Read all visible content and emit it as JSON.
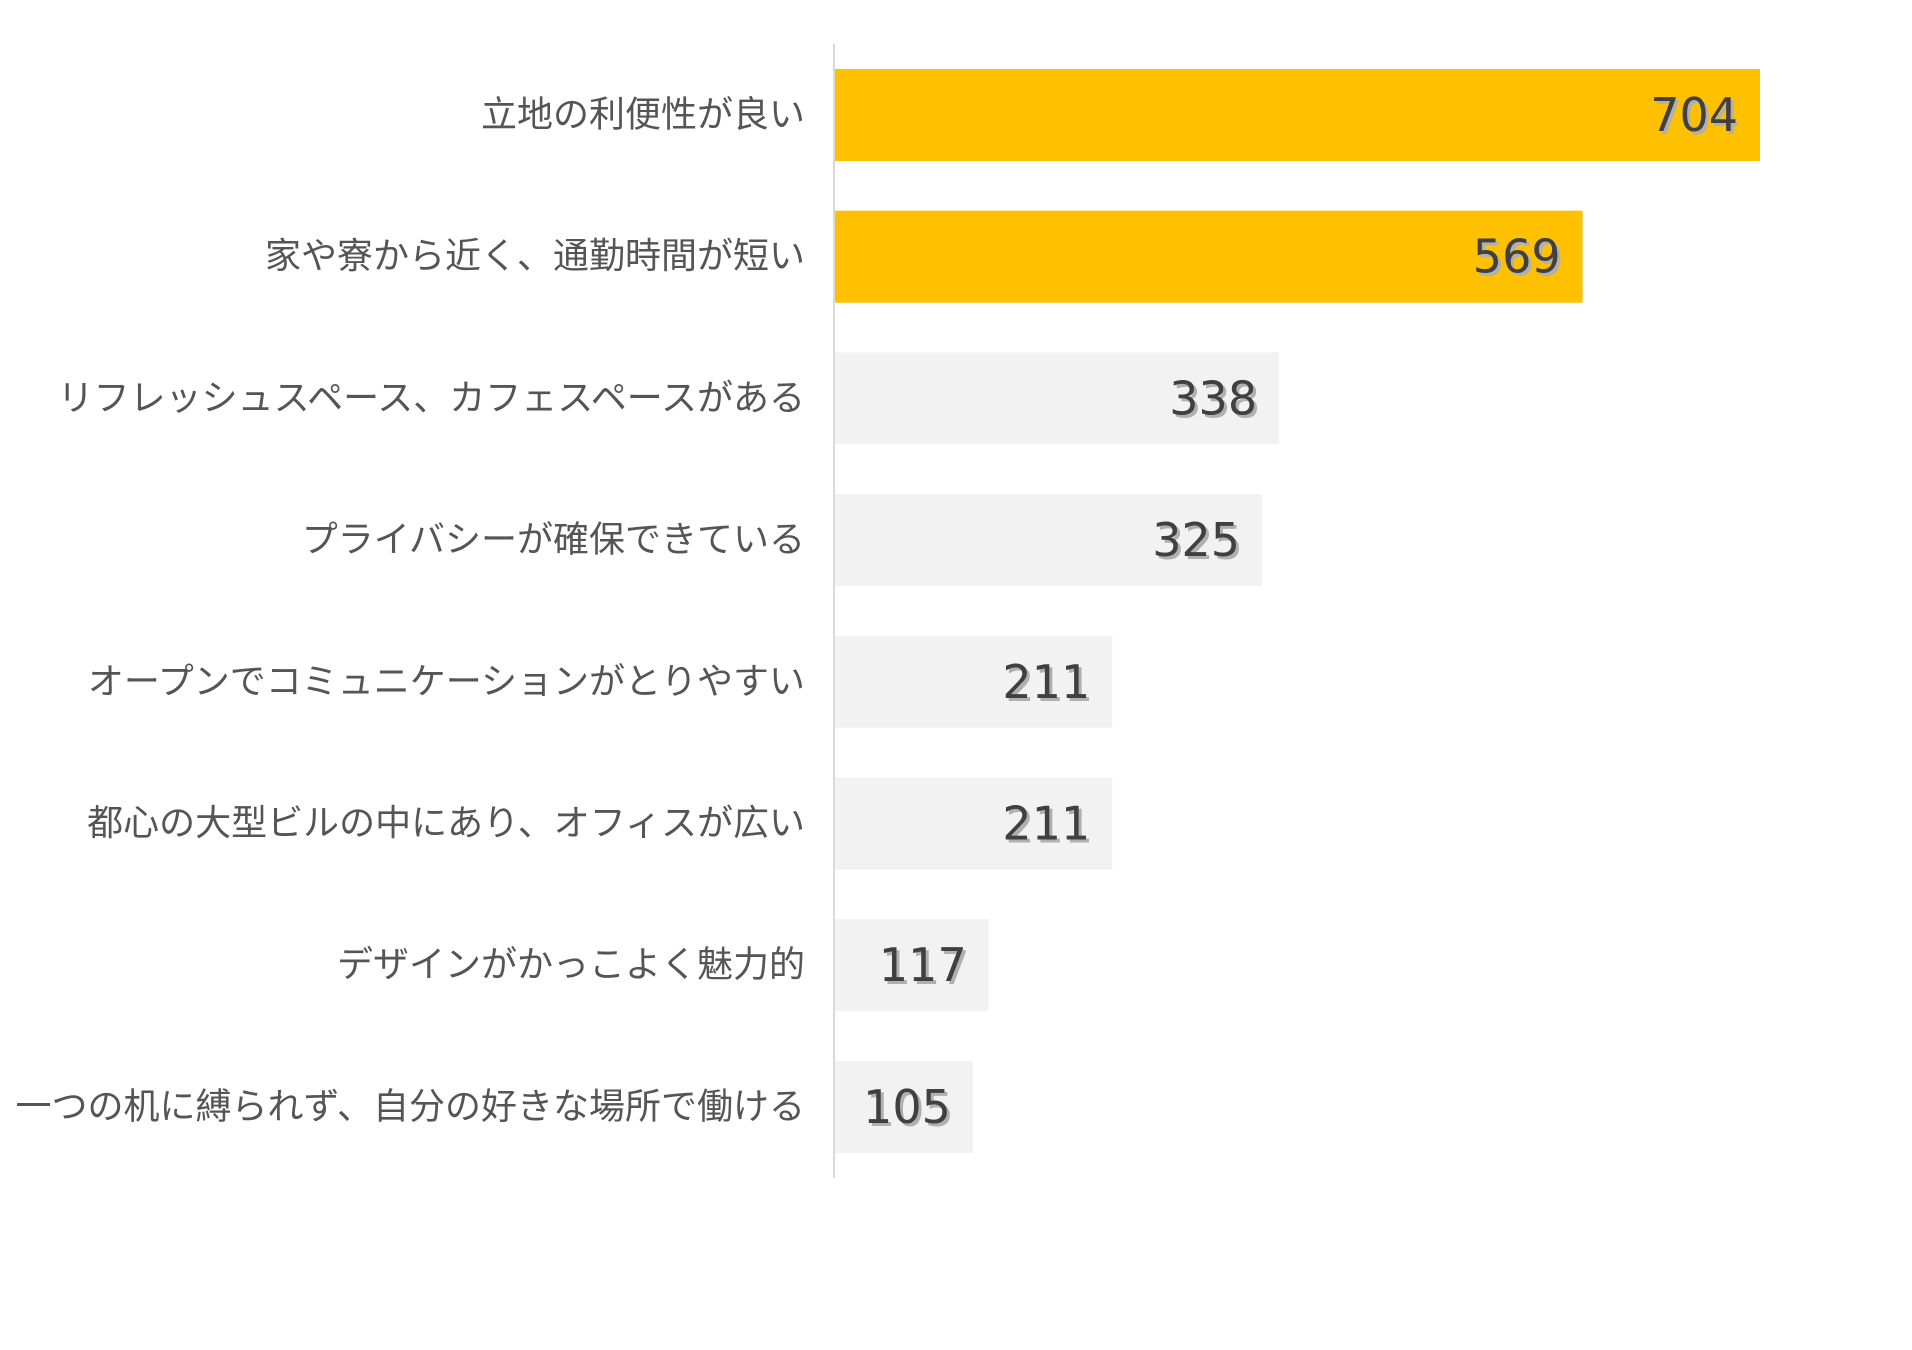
{
  "chart_data": {
    "type": "bar",
    "orientation": "horizontal",
    "categories": [
      "立地の利便性が良い",
      "家や寮から近く、通勤時間が短い",
      "リフレッシュスペース、カフェスペースがある",
      "プライバシーが確保できている",
      "オープンでコミュニケーションがとりやすい",
      "都心の大型ビルの中にあり、オフィスが広い",
      "デザインがかっこよく魅力的",
      "一つの机に縛られず、自分の好きな場所で働ける"
    ],
    "values": [
      704,
      569,
      338,
      325,
      211,
      211,
      117,
      105
    ],
    "highlight": [
      true,
      true,
      false,
      false,
      false,
      false,
      false,
      false
    ],
    "xlim": [
      0,
      800
    ],
    "grid": false,
    "legend": "none",
    "colors": {
      "highlight": "#FFC000",
      "normal": "#F2F2F2",
      "axis": "#D9D9D9",
      "label_text": "#555555",
      "value_text": "#404040"
    }
  }
}
